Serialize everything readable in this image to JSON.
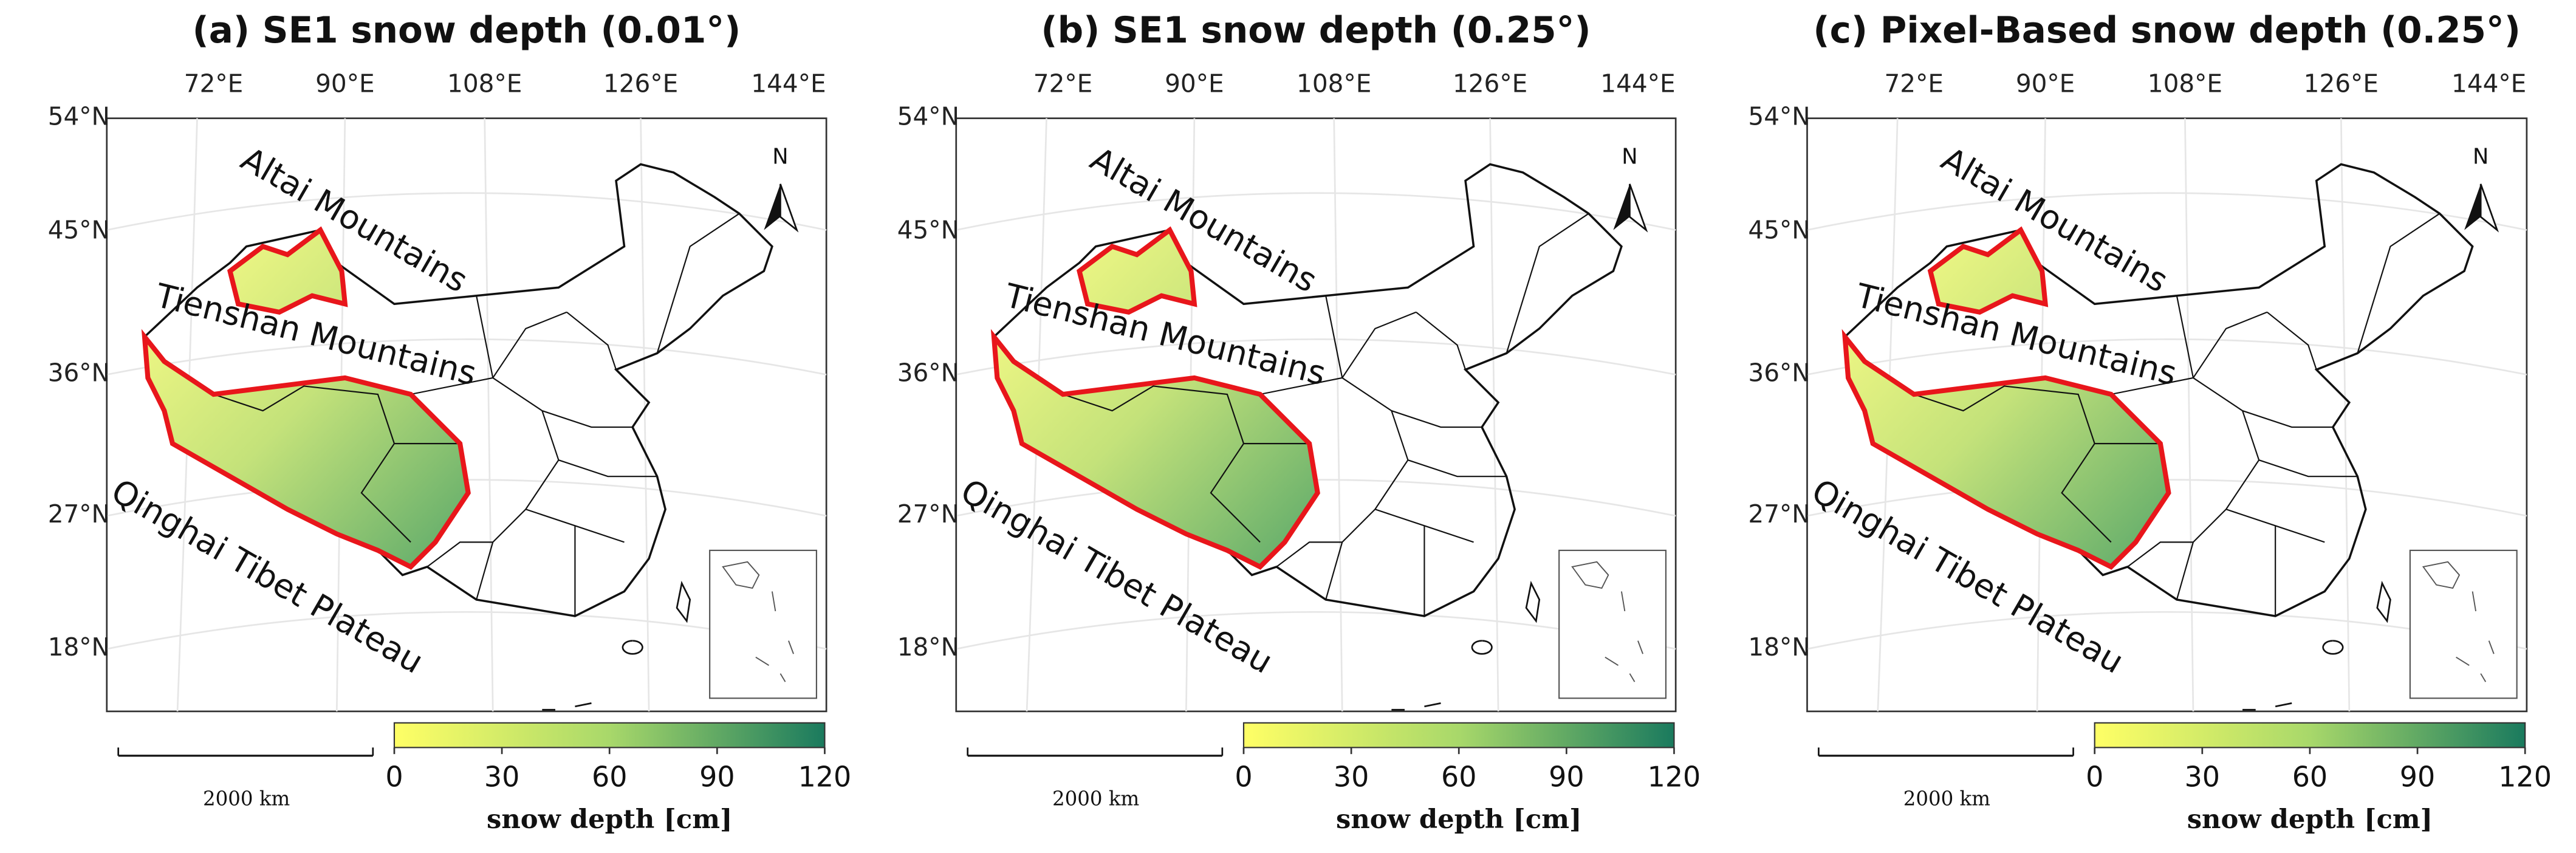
{
  "panels": [
    {
      "title": "(a) SE1 snow depth (0.01°)"
    },
    {
      "title": "(b) SE1 snow depth (0.25°)"
    },
    {
      "title": "(c) Pixel-Based snow depth (0.25°)"
    }
  ],
  "lon_labels": [
    "72°E",
    "90°E",
    "108°E",
    "126°E",
    "144°E"
  ],
  "lat_labels": [
    "54°N",
    "45°N",
    "36°N",
    "27°N",
    "18°N"
  ],
  "region_labels": [
    "Altai Mountains",
    "Tienshan Mountains",
    "Qinghai Tibet Plateau"
  ],
  "north": "N",
  "scale_bar": "2000 km",
  "colorbar": {
    "colors": [
      "#ffff66",
      "#a8d86a",
      "#1a7a5e"
    ],
    "lim": [
      0,
      120
    ],
    "ticks": [
      0,
      30,
      60,
      90,
      120
    ],
    "label": "snow depth [cm]"
  }
}
